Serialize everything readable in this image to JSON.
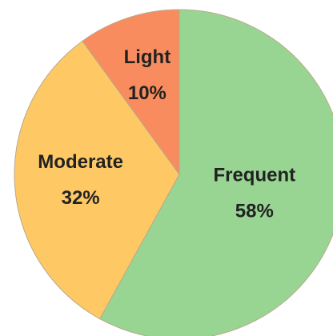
{
  "chart_data": {
    "type": "pie",
    "categories": [
      "Frequent",
      "Moderate",
      "Light"
    ],
    "values": [
      58,
      32,
      10
    ],
    "value_labels": [
      "58%",
      "32%",
      "10%"
    ],
    "colors": [
      "#98d593",
      "#fec965",
      "#f98c5f"
    ]
  }
}
